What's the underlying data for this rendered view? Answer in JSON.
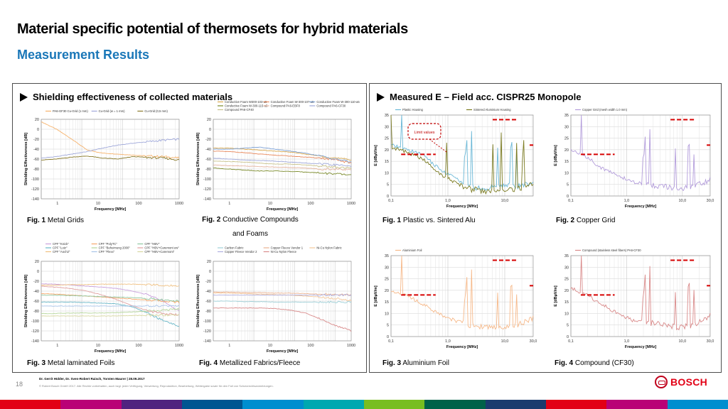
{
  "slide": {
    "title": "Material specific potential of thermosets for hybrid materials",
    "subtitle": "Measurement Results",
    "page_number": "18",
    "authors": "Dr. Gerrit Hülder, Dr. Sven-Robert Raisch, Torsten Maurer | 28.09.2017",
    "copyright": "© Robert Bosch GmbH 2017. Alle Rechte vorbehalten, auch bzgl. jeder Verfügung, Verwertung, Reproduktion, Bearbeitung, Weitergabe sowie für den Fall von Schutzrechtsanmeldungen.",
    "logo_text": "BOSCH"
  },
  "left_panel": {
    "heading": "Shielding effectiveness of collected materials",
    "captions": [
      {
        "num": "Fig. 1",
        "text": "Metal Grids"
      },
      {
        "num": "Fig. 2",
        "text": "Conductive Compounds",
        "text2": "and Foams"
      },
      {
        "num": "Fig. 3",
        "text": "Metal laminated Foils"
      },
      {
        "num": "Fig. 4",
        "text": "Metallized Fabrics/Fleece"
      }
    ]
  },
  "right_panel": {
    "heading": "Measured E – Field acc. CISPR25 Monopole",
    "callout": "Limit values",
    "captions": [
      {
        "num": "Fig. 1",
        "text": "Plastic vs. Sintered Alu"
      },
      {
        "num": "Fig. 2",
        "text": "Copper Grid"
      },
      {
        "num": "Fig. 3",
        "text": "Aluminium Foil"
      },
      {
        "num": "Fig. 4",
        "text": "Compound (CF30)"
      }
    ]
  },
  "chart_data": [
    {
      "type": "line",
      "id": "se1",
      "xlabel": "Frequency [MHz]",
      "ylabel": "Shielding Effectiveness [dB]",
      "xscale": "log",
      "xticks": [
        "1",
        "10",
        "100",
        "1000"
      ],
      "ylim": [
        -140,
        20
      ],
      "yticks": [
        "20",
        "0",
        "-20",
        "-40",
        "-60",
        "-80",
        "-100",
        "-120",
        "-140"
      ],
      "series": [
        {
          "name": "PA6-GF30 Cu-Grid (1 mm)",
          "color": "#f6b26b",
          "values": [
            15,
            0,
            -20,
            -42,
            -48,
            -50,
            -52,
            -54,
            -55,
            -58
          ]
        },
        {
          "name": "Cu-Grid (w = 1 mm)",
          "color": "#9fa8da",
          "values": [
            -58,
            -55,
            -50,
            -45,
            -38,
            -32,
            -28,
            -25,
            -22,
            -20
          ]
        },
        {
          "name": "Cu-Grid (0,5 mm)",
          "color": "#8a7a2a",
          "values": [
            -62,
            -60,
            -56,
            -54,
            -58,
            -60,
            -55,
            -57,
            -58,
            -62
          ]
        }
      ]
    },
    {
      "type": "line",
      "id": "se2",
      "xlabel": "Frequency [MHz]",
      "ylabel": "Shielding Effectiveness [dB]",
      "xscale": "log",
      "xticks": [
        "1",
        "10",
        "100",
        "1000"
      ],
      "ylim": [
        -140,
        20
      ],
      "yticks": [
        "20",
        "0",
        "-20",
        "-40",
        "-60",
        "-80",
        "-100",
        "-120",
        "-140"
      ],
      "series": [
        {
          "name": "Conductive Foam W300-103-a5",
          "color": "#d9a84e",
          "values": [
            -38,
            -38,
            -40,
            -42,
            -44,
            -46,
            -50,
            -54,
            -58,
            -62
          ]
        },
        {
          "name": "Conductive Foam W-300-107-a5",
          "color": "#e8875a",
          "values": [
            -44,
            -45,
            -47,
            -50,
            -52,
            -54,
            -56,
            -58,
            -62,
            -68
          ]
        },
        {
          "name": "Conductive Foam W-300-110-a5",
          "color": "#7fa3d6",
          "values": [
            -40,
            -40,
            -38,
            -36,
            -40,
            -44,
            -48,
            -54,
            -60,
            -66
          ]
        },
        {
          "name": "Conductive Foam W-300-115-a5",
          "color": "#7a8a2a",
          "values": [
            -78,
            -80,
            -82,
            -84,
            -84,
            -85,
            -86,
            -88,
            -90,
            -92
          ]
        },
        {
          "name": "Compound PA6-EBF8",
          "color": "#e5b5a0",
          "values": [
            -72,
            -73,
            -74,
            -75,
            -76,
            -77,
            -78,
            -80,
            -80,
            -82
          ]
        },
        {
          "name": "Compound PA6-CF30",
          "color": "#9fa8da",
          "values": [
            -58,
            -60,
            -62,
            -63,
            -64,
            -66,
            -68,
            -70,
            -72,
            -74
          ]
        },
        {
          "name": "Compound PA6-CF40",
          "color": "#c8c28a",
          "values": [
            -64,
            -65,
            -66,
            -68,
            -70,
            -70,
            -72,
            -74,
            -76,
            -78
          ]
        }
      ]
    },
    {
      "type": "line",
      "id": "se3",
      "xlabel": "Frequency [MHz]",
      "ylabel": "Shielding Effectiveness [dB]",
      "xscale": "log",
      "xticks": [
        "1",
        "10",
        "100",
        "1000"
      ],
      "ylim": [
        -140,
        20
      ],
      "yticks": [
        "20",
        "0",
        "-20",
        "-40",
        "-60",
        "-80",
        "-100",
        "-120",
        "-140"
      ],
      "series": [
        {
          "name": "CPF \"Knick\"",
          "color": "#c9a0dc",
          "values": [
            -25,
            -26,
            -28,
            -30,
            -32,
            -35,
            -40,
            -48,
            -60,
            -80
          ]
        },
        {
          "name": "CPF \"PolyTC\"",
          "color": "#f6a86b",
          "values": [
            -45,
            -46,
            -48,
            -50,
            -52,
            -54,
            -56,
            -58,
            -60,
            -62
          ]
        },
        {
          "name": "CPF \"HBV\"",
          "color": "#8fc7a0",
          "values": [
            -48,
            -48,
            -49,
            -50,
            -51,
            -52,
            -53,
            -55,
            -58,
            -60
          ]
        },
        {
          "name": "CPF \"Lutz\"",
          "color": "#6ab7c7",
          "values": [
            -62,
            -62,
            -62,
            -63,
            -64,
            -66,
            -72,
            -85,
            -100,
            -110
          ]
        },
        {
          "name": "CPF \"Beheimung 2000\"",
          "color": "#b5d69a",
          "values": [
            -85,
            -85,
            -84,
            -84,
            -84,
            -83,
            -82,
            -80,
            -78,
            -76
          ]
        },
        {
          "name": "CPF \"HBV+Caremont ew\"",
          "color": "#e0a0a0",
          "values": [
            -30,
            -32,
            -35,
            -40,
            -48,
            -58,
            -70,
            -80,
            -85,
            -88
          ]
        },
        {
          "name": "CPF \"Aoch2\"",
          "color": "#f0c080",
          "values": [
            -28,
            -28,
            -27,
            -27,
            -26,
            -26,
            -26,
            -27,
            -28,
            -30
          ]
        },
        {
          "name": "CPF \"Flexx\"",
          "color": "#a8c4e8",
          "values": [
            -70,
            -70,
            -70,
            -70,
            -70,
            -70,
            -70,
            -70,
            -70,
            -70
          ]
        },
        {
          "name": "CPF \"HBV+Caremont\"",
          "color": "#d7d7a0",
          "values": [
            -90,
            -90,
            -90,
            -90,
            -90,
            -90,
            -89,
            -89,
            -88,
            -88
          ]
        }
      ]
    },
    {
      "type": "line",
      "id": "se4",
      "xlabel": "Frequency [MHz]",
      "ylabel": "Shielding Effectiveness [dB]",
      "xscale": "log",
      "xticks": [
        "1",
        "10",
        "100",
        "1000"
      ],
      "ylim": [
        -140,
        20
      ],
      "yticks": [
        "20",
        "0",
        "-20",
        "-40",
        "-60",
        "-80",
        "-100",
        "-120",
        "-140"
      ],
      "series": [
        {
          "name": "Carbon Fabric",
          "color": "#9ed0d8",
          "values": [
            -60,
            -60,
            -61,
            -61,
            -62,
            -62,
            -62,
            -62,
            -62,
            -62
          ]
        },
        {
          "name": "Copper Fleece Vendor 1",
          "color": "#e8b090",
          "values": [
            -42,
            -42,
            -43,
            -43,
            -44,
            -44,
            -45,
            -46,
            -47,
            -48
          ]
        },
        {
          "name": "Ni-Cu Nylon Fabric",
          "color": "#f4c79a",
          "values": [
            -44,
            -44,
            -45,
            -46,
            -47,
            -48,
            -50,
            -52,
            -55,
            -58
          ]
        },
        {
          "name": "Copper Fleece Vendor 2",
          "color": "#b0b0e0",
          "values": [
            -48,
            -48,
            -48,
            -48,
            -48,
            -48,
            -48,
            -48,
            -48,
            -48
          ]
        },
        {
          "name": "Ni-Cu Nylon Fleece",
          "color": "#d98a8a",
          "values": [
            -74,
            -74,
            -74,
            -74,
            -75,
            -78,
            -84,
            -96,
            -110,
            -120
          ]
        }
      ]
    },
    {
      "type": "line",
      "id": "ef1",
      "xlabel": "Frequency [MHz]",
      "ylabel": "E [dBµV/m]",
      "xscale": "log",
      "xticks": [
        "0,1",
        "1,0",
        "10,0"
      ],
      "ylim": [
        0,
        35
      ],
      "yticks": [
        "35",
        "30",
        "25",
        "20",
        "15",
        "10",
        "5",
        "0"
      ],
      "series": [
        {
          "name": "Plastic Housing",
          "color": "#6ab7d6",
          "values": [
            22,
            20,
            18,
            12,
            8,
            4,
            3,
            5,
            4,
            6
          ]
        },
        {
          "name": "Sintered Aluminium Housing",
          "color": "#7a7a20",
          "values": [
            21,
            19,
            16,
            10,
            6,
            3,
            2,
            3,
            3,
            5
          ]
        }
      ],
      "limits": [
        {
          "from": 0.15,
          "to": 0.6,
          "value": 18
        },
        {
          "from": 5.9,
          "to": 15.5,
          "value": 33
        },
        {
          "from": 26,
          "to": 30,
          "value": 22
        }
      ]
    },
    {
      "type": "line",
      "id": "ef2",
      "xlabel": "Frequency [MHz]",
      "ylabel": "E [dBµV/m]",
      "xscale": "log",
      "xticks": [
        "0,1",
        "1,0",
        "10,0",
        "30,0"
      ],
      "ylim": [
        0,
        35
      ],
      "yticks": [
        "35",
        "30",
        "25",
        "20",
        "15",
        "10",
        "5",
        "0"
      ],
      "series": [
        {
          "name": "Copper Grid (mesh width 1.0 mm)",
          "color": "#b39ddb",
          "values": [
            20,
            17,
            12,
            9,
            6,
            5,
            4,
            3,
            4,
            7
          ]
        }
      ],
      "limits": [
        {
          "from": 0.15,
          "to": 0.6,
          "value": 18
        },
        {
          "from": 5.9,
          "to": 15.5,
          "value": 33
        },
        {
          "from": 26,
          "to": 30,
          "value": 22
        }
      ]
    },
    {
      "type": "line",
      "id": "ef3",
      "xlabel": "Frequency [MHz]",
      "ylabel": "E [dBµV/m]",
      "xscale": "log",
      "xticks": [
        "0,1",
        "1,0",
        "10,0",
        "30,0"
      ],
      "ylim": [
        0,
        35
      ],
      "yticks": [
        "35",
        "30",
        "25",
        "20",
        "15",
        "10",
        "5",
        "0"
      ],
      "series": [
        {
          "name": "Aluminium Foil",
          "color": "#f6b98a",
          "values": [
            20,
            18,
            14,
            10,
            7,
            5,
            4,
            4,
            5,
            8
          ]
        }
      ],
      "limits": [
        {
          "from": 0.15,
          "to": 0.6,
          "value": 18
        },
        {
          "from": 5.9,
          "to": 15.5,
          "value": 33
        },
        {
          "from": 26,
          "to": 30,
          "value": 22
        }
      ]
    },
    {
      "type": "line",
      "id": "ef4",
      "xlabel": "Frequency [MHz]",
      "ylabel": "E [dBµV/m]",
      "xscale": "log",
      "xticks": [
        "0,1",
        "1,0",
        "10,0",
        "30,0"
      ],
      "ylim": [
        0,
        35
      ],
      "yticks": [
        "35",
        "30",
        "25",
        "20",
        "15",
        "10",
        "5",
        "0"
      ],
      "series": [
        {
          "name": "Compound (stainless steel fibers) PA6-CF30",
          "color": "#d98a8a",
          "values": [
            21,
            18,
            14,
            10,
            7,
            6,
            5,
            4,
            5,
            9
          ]
        }
      ],
      "limits": [
        {
          "from": 0.15,
          "to": 0.6,
          "value": 18
        },
        {
          "from": 5.9,
          "to": 15.5,
          "value": 33
        },
        {
          "from": 26,
          "to": 30,
          "value": 22
        }
      ]
    }
  ],
  "stripe_colors": [
    "#e20015",
    "#b90276",
    "#50237f",
    "#005691",
    "#008ecf",
    "#00a8b0",
    "#78be20",
    "#006249",
    "#1a3b6e",
    "#e20015",
    "#b90276",
    "#008ecf"
  ]
}
